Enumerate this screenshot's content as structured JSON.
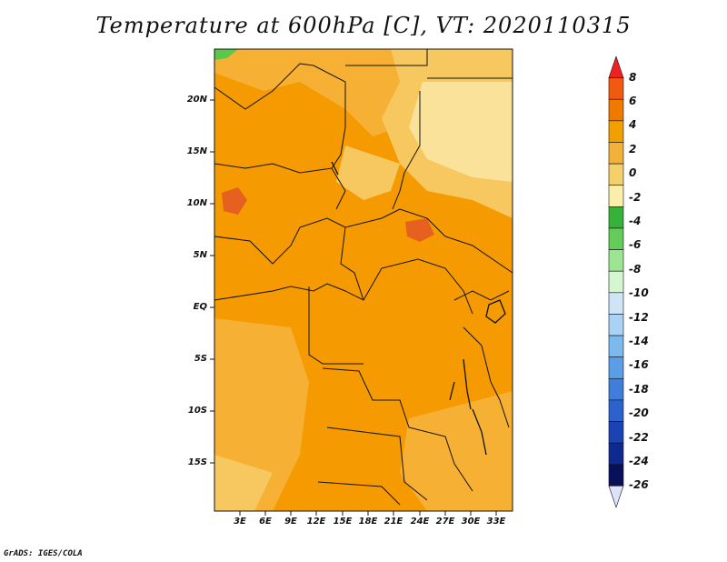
{
  "title": "Temperature at 600hPa [C], VT: 2020110315",
  "credit": "GrADS: IGES/COLA",
  "lat_labels": [
    "20N",
    "15N",
    "10N",
    "5N",
    "EQ",
    "5S",
    "10S",
    "15S"
  ],
  "lon_labels": [
    "3E",
    "6E",
    "9E",
    "12E",
    "15E",
    "18E",
    "21E",
    "24E",
    "27E",
    "30E",
    "33E"
  ],
  "colorbar": {
    "labels": [
      "8",
      "6",
      "4",
      "2",
      "0",
      "-2",
      "-4",
      "-6",
      "-8",
      "-10",
      "-12",
      "-14",
      "-16",
      "-18",
      "-20",
      "-22",
      "-24",
      "-26"
    ],
    "colors": [
      "#f02020",
      "#f05a10",
      "#f07a00",
      "#f0a000",
      "#f2b23a",
      "#f5cf6a",
      "#fbeeaa",
      "#36b23a",
      "#63cc5a",
      "#9ce592",
      "#d4f7d0",
      "#cfe5f7",
      "#a9d2f5",
      "#7cb9ef",
      "#5b9ee6",
      "#3f7fdb",
      "#2c62cc",
      "#1c43b3",
      "#0f2a8f",
      "#09105a",
      "#dfe2ff"
    ]
  },
  "map": {
    "dominant_colors": [
      "#f59a00",
      "#f6b033",
      "#f8c860",
      "#fbe29a",
      "#e66020",
      "#5bc84a"
    ]
  }
}
